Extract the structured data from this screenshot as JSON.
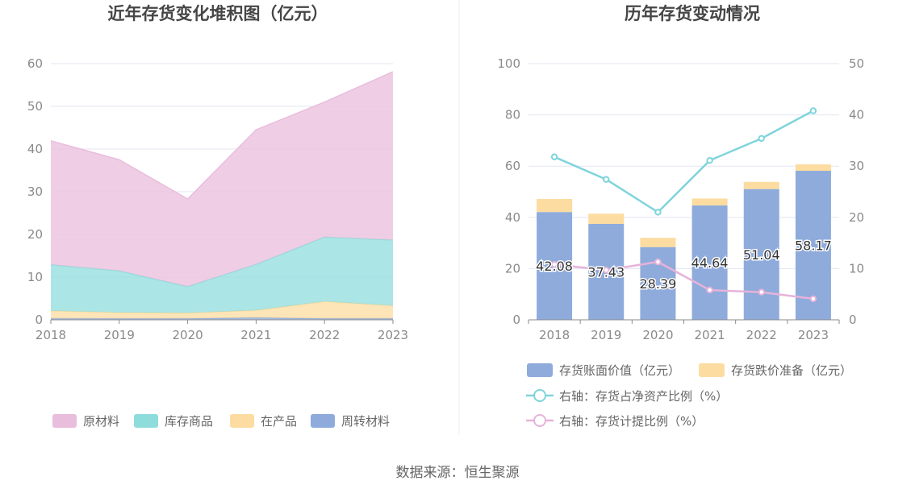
{
  "source": "数据来源：恒生聚源",
  "chart_data": [
    {
      "type": "area",
      "stacked": true,
      "title": "近年存货变化堆积图（亿元）",
      "categories": [
        "2018",
        "2019",
        "2020",
        "2021",
        "2022",
        "2023"
      ],
      "ylim": [
        0,
        60
      ],
      "yticks": [
        0,
        10,
        20,
        30,
        40,
        50,
        60
      ],
      "grid": true,
      "legend_position": "bottom",
      "series": [
        {
          "name": "原材料",
          "color": "#e9bddc",
          "values": [
            29.0,
            26.0,
            20.5,
            31.5,
            31.6,
            39.4
          ]
        },
        {
          "name": "库存商品",
          "color": "#8fdcdc",
          "values": [
            10.8,
            9.8,
            6.2,
            10.8,
            15.1,
            15.4
          ]
        },
        {
          "name": "在产品",
          "color": "#fcdca0",
          "values": [
            1.8,
            1.4,
            1.3,
            1.7,
            4.0,
            3.0
          ]
        },
        {
          "name": "周转材料",
          "color": "#8eabdb",
          "values": [
            0.3,
            0.3,
            0.3,
            0.5,
            0.3,
            0.3
          ]
        }
      ]
    },
    {
      "type": "bar",
      "title": "历年存货变动情况",
      "categories": [
        "2018",
        "2019",
        "2020",
        "2021",
        "2022",
        "2023"
      ],
      "ylim": [
        0,
        100
      ],
      "yticks": [
        0,
        20,
        40,
        60,
        80,
        100
      ],
      "y2lim": [
        0,
        50
      ],
      "y2ticks": [
        0,
        10,
        20,
        30,
        40,
        50
      ],
      "grid": true,
      "legend_position": "bottom",
      "bar_series": [
        {
          "name": "存货账面价值（亿元）",
          "color": "#8eabdb",
          "values": [
            42.08,
            37.43,
            28.39,
            44.64,
            51.04,
            58.17
          ],
          "labels": [
            "42.08",
            "37.43",
            "28.39",
            "44.64",
            "51.04",
            "58.17"
          ]
        },
        {
          "name": "存货跌价准备（亿元）",
          "color": "#fcdca0",
          "values": [
            5.1,
            4.0,
            3.6,
            2.7,
            2.8,
            2.5
          ]
        }
      ],
      "line_series": [
        {
          "name": "右轴：存货占净资产比例（%）",
          "color": "#80d4dc",
          "axis": "right",
          "values": [
            31.8,
            27.4,
            21.0,
            31.1,
            35.4,
            40.8
          ]
        },
        {
          "name": "右轴：存货计提比例（%）",
          "color": "#e7b2da",
          "axis": "right",
          "values": [
            10.8,
            9.7,
            11.3,
            5.8,
            5.4,
            4.1
          ]
        }
      ]
    }
  ]
}
